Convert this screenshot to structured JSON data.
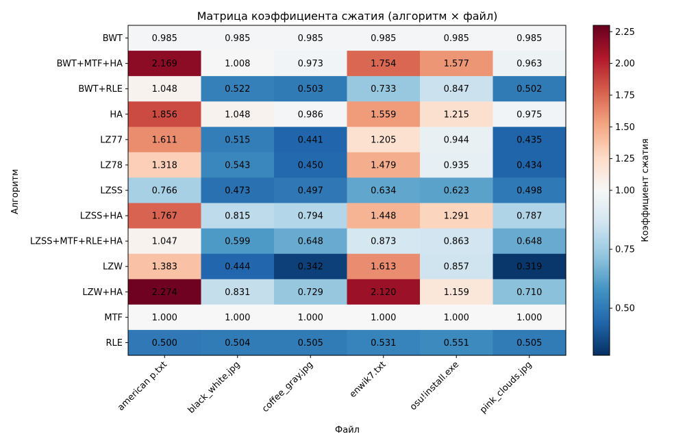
{
  "chart_data": {
    "type": "heatmap",
    "title": "Матрица коэффициента сжатия (алгоритм × файл)",
    "xlabel": "Файл",
    "ylabel": "Алгоритм",
    "colorbar_label": "Коэффициент сжатия",
    "colormap": "RdBu_r (diverging, centered at 1.0)",
    "color_range": [
      0.3,
      2.3
    ],
    "colorbar_center": 1.0,
    "colorbar_ticks": [
      0.5,
      0.75,
      1.0,
      1.25,
      1.5,
      1.75,
      2.0,
      2.25
    ],
    "colorbar_tick_labels": [
      "0.50",
      "0.75",
      "1.00",
      "1.25",
      "1.50",
      "1.75",
      "2.00",
      "2.25"
    ],
    "x_categories": [
      "american p.txt",
      "black_white.jpg",
      "coffee_gray.jpg",
      "enwik7.txt",
      "osu!install.exe",
      "pink_clouds.jpg"
    ],
    "y_categories": [
      "BWT",
      "BWT+MTF+HA",
      "BWT+RLE",
      "HA",
      "LZ77",
      "LZ78",
      "LZSS",
      "LZSS+HA",
      "LZSS+MTF+RLE+HA",
      "LZW",
      "LZW+HA",
      "MTF",
      "RLE"
    ],
    "values": [
      [
        0.985,
        0.985,
        0.985,
        0.985,
        0.985,
        0.985
      ],
      [
        2.169,
        1.008,
        0.973,
        1.754,
        1.577,
        0.963
      ],
      [
        1.048,
        0.522,
        0.503,
        0.733,
        0.847,
        0.502
      ],
      [
        1.856,
        1.048,
        0.986,
        1.559,
        1.215,
        0.975
      ],
      [
        1.611,
        0.515,
        0.441,
        1.205,
        0.944,
        0.435
      ],
      [
        1.318,
        0.543,
        0.45,
        1.479,
        0.935,
        0.434
      ],
      [
        0.766,
        0.473,
        0.497,
        0.634,
        0.623,
        0.498
      ],
      [
        1.767,
        0.815,
        0.794,
        1.448,
        1.291,
        0.787
      ],
      [
        1.047,
        0.599,
        0.648,
        0.873,
        0.863,
        0.648
      ],
      [
        1.383,
        0.444,
        0.342,
        1.613,
        0.857,
        0.319
      ],
      [
        2.274,
        0.831,
        0.729,
        2.12,
        1.159,
        0.71
      ],
      [
        1.0,
        1.0,
        1.0,
        1.0,
        1.0,
        1.0
      ],
      [
        0.5,
        0.504,
        0.505,
        0.531,
        0.551,
        0.505
      ]
    ],
    "value_labels": [
      [
        "0.985",
        "0.985",
        "0.985",
        "0.985",
        "0.985",
        "0.985"
      ],
      [
        "2.169",
        "1.008",
        "0.973",
        "1.754",
        "1.577",
        "0.963"
      ],
      [
        "1.048",
        "0.522",
        "0.503",
        "0.733",
        "0.847",
        "0.502"
      ],
      [
        "1.856",
        "1.048",
        "0.986",
        "1.559",
        "1.215",
        "0.975"
      ],
      [
        "1.611",
        "0.515",
        "0.441",
        "1.205",
        "0.944",
        "0.435"
      ],
      [
        "1.318",
        "0.543",
        "0.450",
        "1.479",
        "0.935",
        "0.434"
      ],
      [
        "0.766",
        "0.473",
        "0.497",
        "0.634",
        "0.623",
        "0.498"
      ],
      [
        "1.767",
        "0.815",
        "0.794",
        "1.448",
        "1.291",
        "0.787"
      ],
      [
        "1.047",
        "0.599",
        "0.648",
        "0.873",
        "0.863",
        "0.648"
      ],
      [
        "1.383",
        "0.444",
        "0.342",
        "1.613",
        "0.857",
        "0.319"
      ],
      [
        "2.274",
        "0.831",
        "0.729",
        "2.120",
        "1.159",
        "0.710"
      ],
      [
        "1.000",
        "1.000",
        "1.000",
        "1.000",
        "1.000",
        "1.000"
      ],
      [
        "0.500",
        "0.504",
        "0.505",
        "0.531",
        "0.551",
        "0.505"
      ]
    ]
  }
}
